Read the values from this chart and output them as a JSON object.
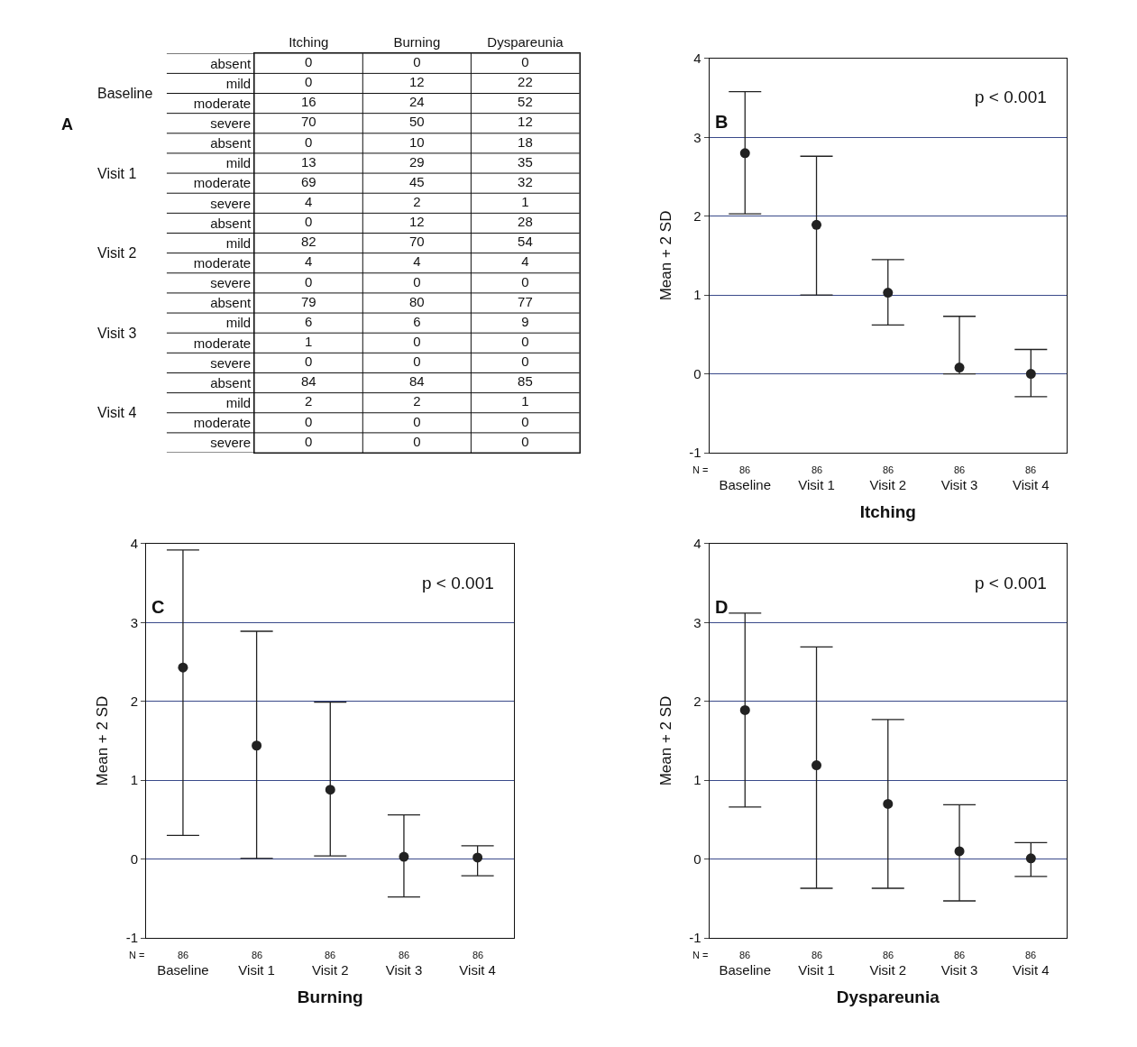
{
  "chart_data": [
    {
      "type": "heatmap",
      "title": "A",
      "data_labels": true,
      "categories": [
        "Itching",
        "Burning",
        "Dyspareunia"
      ],
      "y_categories": [
        "absent",
        "mild",
        "moderate",
        "severe",
        "absent",
        "mild",
        "moderate",
        "severe",
        "absent",
        "mild",
        "moderate",
        "severe",
        "absent",
        "mild",
        "moderate",
        "severe",
        "absent",
        "mild",
        "moderate",
        "severe"
      ],
      "cells": [
        [
          0,
          0,
          0
        ],
        [
          0,
          12,
          22
        ],
        [
          16,
          24,
          52
        ],
        [
          70,
          50,
          12
        ],
        [
          0,
          10,
          18
        ],
        [
          13,
          29,
          35
        ],
        [
          69,
          45,
          32
        ],
        [
          4,
          2,
          1
        ],
        [
          0,
          12,
          28
        ],
        [
          82,
          70,
          54
        ],
        [
          4,
          4,
          4
        ],
        [
          0,
          0,
          0
        ],
        [
          79,
          80,
          77
        ],
        [
          6,
          6,
          9
        ],
        [
          1,
          0,
          0
        ],
        [
          0,
          0,
          0
        ],
        [
          84,
          84,
          85
        ],
        [
          2,
          2,
          1
        ],
        [
          0,
          0,
          0
        ],
        [
          0,
          0,
          0
        ]
      ],
      "annotations": [
        "Baseline",
        "Visit 1",
        "Visit 2",
        "Visit 3",
        "Visit 4"
      ]
    },
    {
      "type": "scatter",
      "title": "B",
      "xlabel": "Itching",
      "ylabel": "Mean + 2 SD",
      "categories": [
        "Baseline",
        "Visit 1",
        "Visit 2",
        "Visit 3",
        "Visit 4"
      ],
      "values": [
        2.8,
        1.89,
        1.03,
        0.08,
        0.0
      ],
      "errors": [
        [
          2.03,
          3.58
        ],
        [
          1.0,
          2.76
        ],
        [
          0.62,
          1.45
        ],
        [
          0.0,
          0.73
        ],
        [
          -0.29,
          0.31
        ]
      ],
      "color": "#222222",
      "marker": "circle",
      "ylim": [
        -1,
        4
      ],
      "yticks": [
        -1,
        0,
        1,
        2,
        3,
        4
      ],
      "grid": "y",
      "annotations": [
        "p < 0.001",
        "N =",
        "86",
        "86",
        "86",
        "86",
        "86"
      ]
    },
    {
      "type": "scatter",
      "title": "C",
      "xlabel": "Burning",
      "ylabel": "Mean + 2 SD",
      "categories": [
        "Baseline",
        "Visit 1",
        "Visit 2",
        "Visit 3",
        "Visit 4"
      ],
      "values": [
        2.43,
        1.44,
        0.88,
        0.03,
        0.02
      ],
      "errors": [
        [
          0.3,
          3.92
        ],
        [
          0.01,
          2.89
        ],
        [
          0.04,
          1.99
        ],
        [
          -0.48,
          0.56
        ],
        [
          -0.21,
          0.17
        ]
      ],
      "color": "#222222",
      "marker": "circle",
      "ylim": [
        -1,
        4
      ],
      "yticks": [
        -1,
        0,
        1,
        2,
        3,
        4
      ],
      "grid": "y",
      "annotations": [
        "p < 0.001",
        "N =",
        "86",
        "86",
        "86",
        "86",
        "86"
      ]
    },
    {
      "type": "scatter",
      "title": "D",
      "xlabel": "Dyspareunia",
      "ylabel": "Mean + 2 SD",
      "categories": [
        "Baseline",
        "Visit 1",
        "Visit 2",
        "Visit 3",
        "Visit 4"
      ],
      "values": [
        1.89,
        1.19,
        0.7,
        0.1,
        0.01
      ],
      "errors": [
        [
          0.66,
          3.12
        ],
        [
          -0.37,
          2.69
        ],
        [
          -0.37,
          1.77
        ],
        [
          -0.53,
          0.69
        ],
        [
          -0.22,
          0.21
        ]
      ],
      "color": "#222222",
      "marker": "circle",
      "ylim": [
        -1,
        4
      ],
      "yticks": [
        -1,
        0,
        1,
        2,
        3,
        4
      ],
      "grid": "y",
      "annotations": [
        "p < 0.001",
        "N =",
        "86",
        "86",
        "86",
        "86",
        "86"
      ]
    }
  ]
}
